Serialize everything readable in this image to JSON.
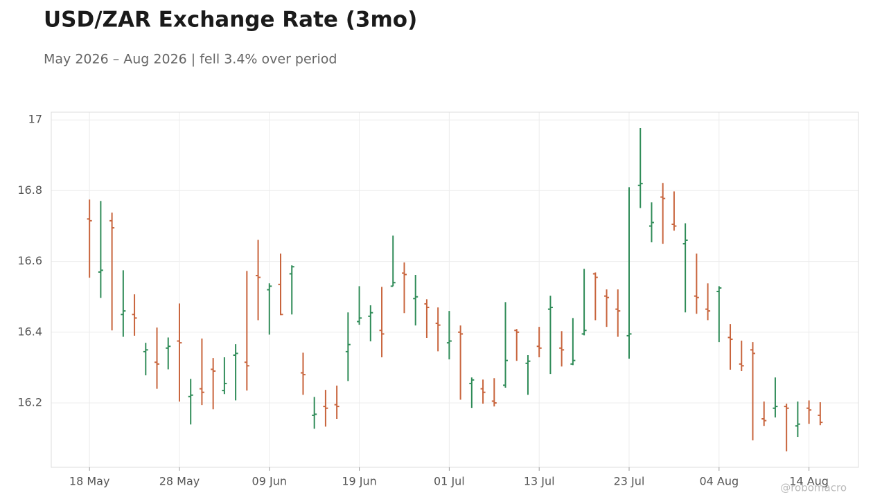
{
  "chart_data": {
    "type": "ohlc",
    "title": "USD/ZAR Exchange Rate (3mo)",
    "subtitle": "May 2026 – Aug 2026 | fell 3.4% over period",
    "watermark": "@robomacro",
    "categories": [
      "18 May",
      null,
      null,
      null,
      null,
      null,
      null,
      null,
      "28 May",
      null,
      null,
      null,
      null,
      null,
      null,
      null,
      "09 Jun",
      null,
      null,
      null,
      null,
      null,
      null,
      null,
      "19 Jun",
      null,
      null,
      null,
      null,
      null,
      null,
      null,
      "01 Jul",
      null,
      null,
      null,
      null,
      null,
      null,
      null,
      "13 Jul",
      null,
      null,
      null,
      null,
      null,
      null,
      null,
      "23 Jul",
      null,
      null,
      null,
      null,
      null,
      null,
      null,
      "04 Aug",
      null,
      null,
      null,
      null,
      null,
      null,
      null,
      "14 Aug",
      null
    ],
    "open": [
      16.72,
      16.57,
      16.715,
      16.45,
      16.45,
      16.345,
      16.315,
      16.355,
      16.375,
      16.218,
      16.24,
      16.295,
      16.235,
      16.335,
      16.315,
      16.56,
      16.52,
      16.535,
      16.565,
      16.285,
      16.165,
      16.19,
      16.195,
      16.345,
      16.43,
      16.445,
      16.405,
      16.53,
      16.567,
      16.495,
      16.48,
      16.425,
      16.37,
      16.4,
      16.255,
      16.24,
      16.205,
      16.25,
      16.405,
      16.312,
      16.36,
      16.465,
      16.355,
      16.31,
      16.395,
      16.565,
      16.502,
      16.465,
      16.39,
      16.815,
      16.7,
      16.782,
      16.705,
      16.65,
      16.502,
      16.465,
      16.515,
      16.385,
      16.31,
      16.35,
      16.155,
      16.185,
      16.19,
      16.135,
      16.185,
      16.165
    ],
    "high": [
      16.775,
      16.771,
      16.738,
      16.575,
      16.507,
      16.37,
      16.413,
      16.385,
      16.481,
      16.268,
      16.382,
      16.327,
      16.329,
      16.366,
      16.573,
      16.661,
      16.538,
      16.622,
      16.589,
      16.342,
      16.217,
      16.237,
      16.249,
      16.456,
      16.53,
      16.476,
      16.528,
      16.673,
      16.597,
      16.562,
      16.493,
      16.47,
      16.46,
      16.419,
      16.272,
      16.266,
      16.27,
      16.485,
      16.409,
      16.335,
      16.415,
      16.503,
      16.403,
      16.44,
      16.579,
      16.569,
      16.521,
      16.521,
      16.81,
      16.977,
      16.767,
      16.822,
      16.798,
      16.708,
      16.622,
      16.538,
      16.53,
      16.423,
      16.376,
      16.372,
      16.204,
      16.272,
      16.198,
      16.204,
      16.207,
      16.202
    ],
    "low": [
      16.554,
      16.497,
      16.405,
      16.387,
      16.39,
      16.278,
      16.24,
      16.295,
      16.204,
      16.139,
      16.194,
      16.182,
      16.225,
      16.207,
      16.235,
      16.434,
      16.393,
      16.448,
      16.45,
      16.223,
      16.127,
      16.133,
      16.155,
      16.262,
      16.421,
      16.374,
      16.329,
      16.53,
      16.454,
      16.419,
      16.384,
      16.346,
      16.323,
      16.209,
      16.186,
      16.198,
      16.19,
      16.243,
      16.319,
      16.223,
      16.329,
      16.282,
      16.303,
      16.307,
      16.391,
      16.434,
      16.415,
      16.387,
      16.325,
      16.751,
      16.654,
      16.65,
      16.687,
      16.456,
      16.452,
      16.434,
      16.372,
      16.294,
      16.29,
      16.094,
      16.135,
      16.159,
      16.063,
      16.104,
      16.141,
      16.137
    ],
    "close": [
      16.715,
      16.575,
      16.695,
      16.46,
      16.44,
      16.35,
      16.31,
      16.36,
      16.37,
      16.222,
      16.23,
      16.29,
      16.255,
      16.34,
      16.305,
      16.555,
      16.53,
      16.45,
      16.585,
      16.28,
      16.168,
      16.185,
      16.19,
      16.365,
      16.44,
      16.455,
      16.395,
      16.54,
      16.563,
      16.5,
      16.47,
      16.42,
      16.375,
      16.395,
      16.265,
      16.23,
      16.2,
      16.32,
      16.4,
      16.318,
      16.355,
      16.47,
      16.35,
      16.32,
      16.405,
      16.555,
      16.498,
      16.46,
      16.395,
      16.82,
      16.71,
      16.778,
      16.7,
      16.66,
      16.498,
      16.46,
      16.525,
      16.38,
      16.305,
      16.34,
      16.15,
      16.19,
      16.185,
      16.14,
      16.18,
      16.145
    ],
    "up_color": "#2e8b57",
    "down_color": "#c8643c",
    "xlim": [
      -3.4,
      68.4
    ],
    "ylim": [
      16.018,
      17.022
    ],
    "yticks": [
      16.2,
      16.4,
      16.6,
      16.8,
      17
    ],
    "grid": true
  }
}
